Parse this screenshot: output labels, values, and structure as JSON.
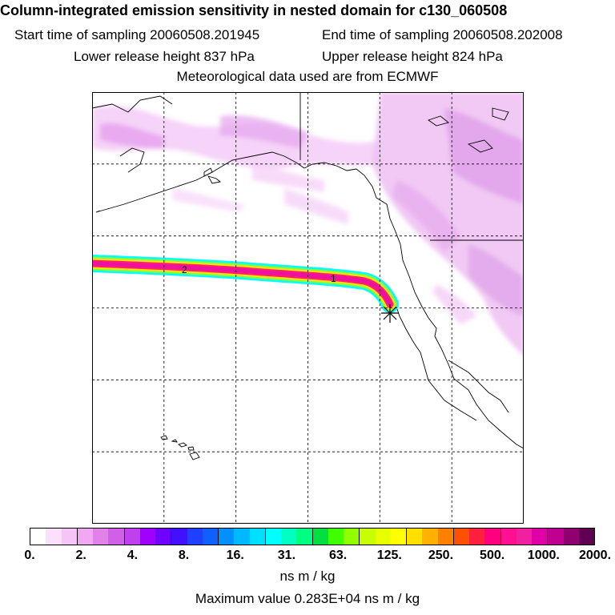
{
  "header": {
    "title": "Column-integrated emission sensitivity in nested domain for c130_060508",
    "start_label": "Start time of sampling 20060508.201945",
    "end_label": "End time of sampling 20060508.202008",
    "lower_label": "Lower release height  837 hPa",
    "upper_label": "Upper release height  824 hPa",
    "met_label": "Meteorological data used are from ECMWF"
  },
  "map": {
    "trajectory_labels": [
      "2",
      "1"
    ],
    "release_marker": "release-point-asterisk"
  },
  "colorbar": {
    "colors": [
      "#ffffff",
      "#fbe0fb",
      "#f7c4f7",
      "#f0a8f0",
      "#e082e8",
      "#d060e8",
      "#c040f0",
      "#a000ff",
      "#7000ff",
      "#4010ff",
      "#2040ff",
      "#1060ff",
      "#0090ff",
      "#00b8ff",
      "#00dfff",
      "#00ffff",
      "#00ffc0",
      "#00ff80",
      "#00e040",
      "#40ff00",
      "#90ff00",
      "#c8ff00",
      "#e8ff00",
      "#ffff00",
      "#ffe000",
      "#ffb000",
      "#ff8000",
      "#ff5000",
      "#ff2040",
      "#ff0080",
      "#ff1090",
      "#f020a0",
      "#e000a8",
      "#c00090",
      "#900070",
      "#600050"
    ],
    "ticks": [
      "0.",
      "2.",
      "4.",
      "8.",
      "16.",
      "31.",
      "63.",
      "125.",
      "250.",
      "500.",
      "1000.",
      "2000."
    ]
  },
  "footer": {
    "units": "ns m / kg",
    "max_value": "Maximum value  0.283E+04 ns m / kg"
  }
}
